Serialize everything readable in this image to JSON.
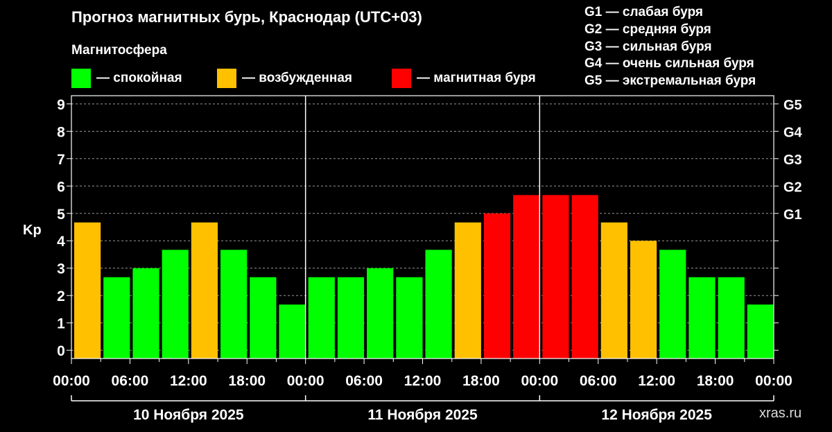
{
  "header": {
    "title": "Прогноз магнитных бурь, Краснодар (UTC+03)",
    "subtitle": "Магнитосфера"
  },
  "legend": [
    {
      "label": "— спокойная",
      "color": "#00ff00"
    },
    {
      "label": "— возбужденная",
      "color": "#ffc000"
    },
    {
      "label": "— магнитная буря",
      "color": "#ff0000"
    }
  ],
  "g_legend": [
    "G1 — слабая буря",
    "G2 — средняя буря",
    "G3 — сильная буря",
    "G4 — очень сильная буря",
    "G5 — экстремальная буря"
  ],
  "watermark": "xras.ru",
  "chart_data": {
    "type": "bar",
    "ylabel": "Kp",
    "ylim": [
      -0.3,
      9.3
    ],
    "y_ticks": [
      "0",
      "1",
      "2",
      "3",
      "4",
      "5",
      "6",
      "7",
      "8",
      "9"
    ],
    "right_ticks": [
      {
        "value": 5,
        "label": "G1"
      },
      {
        "value": 6,
        "label": "G2"
      },
      {
        "value": 7,
        "label": "G3"
      },
      {
        "value": 8,
        "label": "G4"
      },
      {
        "value": 9,
        "label": "G5"
      }
    ],
    "x_tick_labels": [
      "00:00",
      "06:00",
      "12:00",
      "18:00",
      "00:00",
      "06:00",
      "12:00",
      "18:00",
      "00:00",
      "06:00",
      "12:00",
      "18:00",
      "00:00"
    ],
    "days": [
      "10 Ноября 2025",
      "11 Ноября 2025",
      "12 Ноября 2025"
    ],
    "values": [
      4.67,
      2.67,
      3.0,
      3.67,
      4.67,
      3.67,
      2.67,
      1.67,
      2.67,
      2.67,
      3.0,
      2.67,
      3.67,
      4.67,
      5.0,
      5.67,
      5.67,
      5.67,
      4.67,
      4.0,
      3.67,
      2.67,
      2.67,
      1.67
    ],
    "levels": [
      "excited",
      "quiet",
      "quiet",
      "quiet",
      "excited",
      "quiet",
      "quiet",
      "quiet",
      "quiet",
      "quiet",
      "quiet",
      "quiet",
      "quiet",
      "excited",
      "storm",
      "storm",
      "storm",
      "storm",
      "excited",
      "excited",
      "quiet",
      "quiet",
      "quiet",
      "quiet"
    ],
    "colors": {
      "quiet": "#00ff00",
      "excited": "#ffc000",
      "storm": "#ff0000"
    },
    "grid": "dashed"
  }
}
